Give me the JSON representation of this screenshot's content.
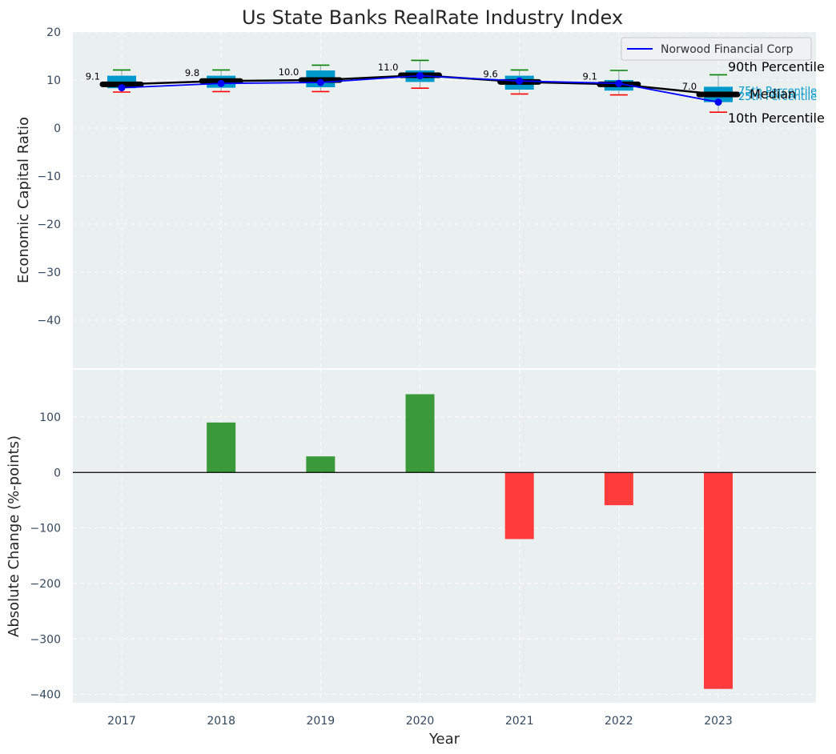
{
  "chart_data": [
    {
      "type": "box-line",
      "title": "Us State Banks RealRate Industry Index",
      "xlabel": "",
      "ylabel": "Economic Capital Ratio",
      "ylim": [
        -50,
        20
      ],
      "yticks": [
        -40,
        -30,
        -20,
        -10,
        0,
        10,
        20
      ],
      "ytick_labels": [
        "−40",
        "−30",
        "−20",
        "−10",
        "0",
        "10",
        "20"
      ],
      "categories": [
        "2017",
        "2018",
        "2019",
        "2020",
        "2021",
        "2022",
        "2023"
      ],
      "percentiles": {
        "p10": [
          7.5,
          7.6,
          7.6,
          8.3,
          7.1,
          6.9,
          3.3
        ],
        "p25": [
          8.3,
          8.4,
          8.5,
          9.6,
          8.0,
          7.8,
          5.4
        ],
        "median": [
          9.1,
          9.8,
          10.0,
          11.0,
          9.6,
          9.1,
          7.0
        ],
        "p75": [
          10.9,
          10.9,
          12.0,
          12.0,
          10.9,
          10.0,
          8.6
        ],
        "p90": [
          12.1,
          12.1,
          13.1,
          14.1,
          12.1,
          12.0,
          11.1
        ]
      },
      "median_labels": [
        "9.1",
        "9.8",
        "10.0",
        "11.0",
        "9.6",
        "9.1",
        "7.0"
      ],
      "series": [
        {
          "name": "Norwood Financial Corp",
          "color": "#0000ff",
          "values": [
            8.4,
            9.3,
            9.5,
            10.9,
            9.8,
            9.3,
            5.4
          ]
        }
      ],
      "legend": {
        "position": "top-right",
        "entries": [
          "Norwood Financial Corp"
        ]
      },
      "annotations": {
        "p90": "90th Percentile",
        "p75": "75th Percentile",
        "median": "Median",
        "p25": "25th Percentile",
        "p10": "10th Percentile"
      },
      "colors": {
        "box": "#0099cc",
        "median": "#000000",
        "whisker_high": "#008000",
        "whisker_low": "#ff0000",
        "series": "#0000ff"
      }
    },
    {
      "type": "bar",
      "xlabel": "Year",
      "ylabel": "Absolute Change (%-points)",
      "ylim": [
        -415,
        185
      ],
      "yticks": [
        -400,
        -300,
        -200,
        -100,
        0,
        100
      ],
      "ytick_labels": [
        "−400",
        "−300",
        "−200",
        "−100",
        "0",
        "100"
      ],
      "categories": [
        "2017",
        "2018",
        "2019",
        "2020",
        "2021",
        "2022",
        "2023"
      ],
      "values": [
        0,
        90,
        29,
        141,
        -120,
        -59,
        -390
      ],
      "colors": {
        "positive": "#3a9a3a",
        "negative": "#ff3c3c"
      }
    }
  ]
}
